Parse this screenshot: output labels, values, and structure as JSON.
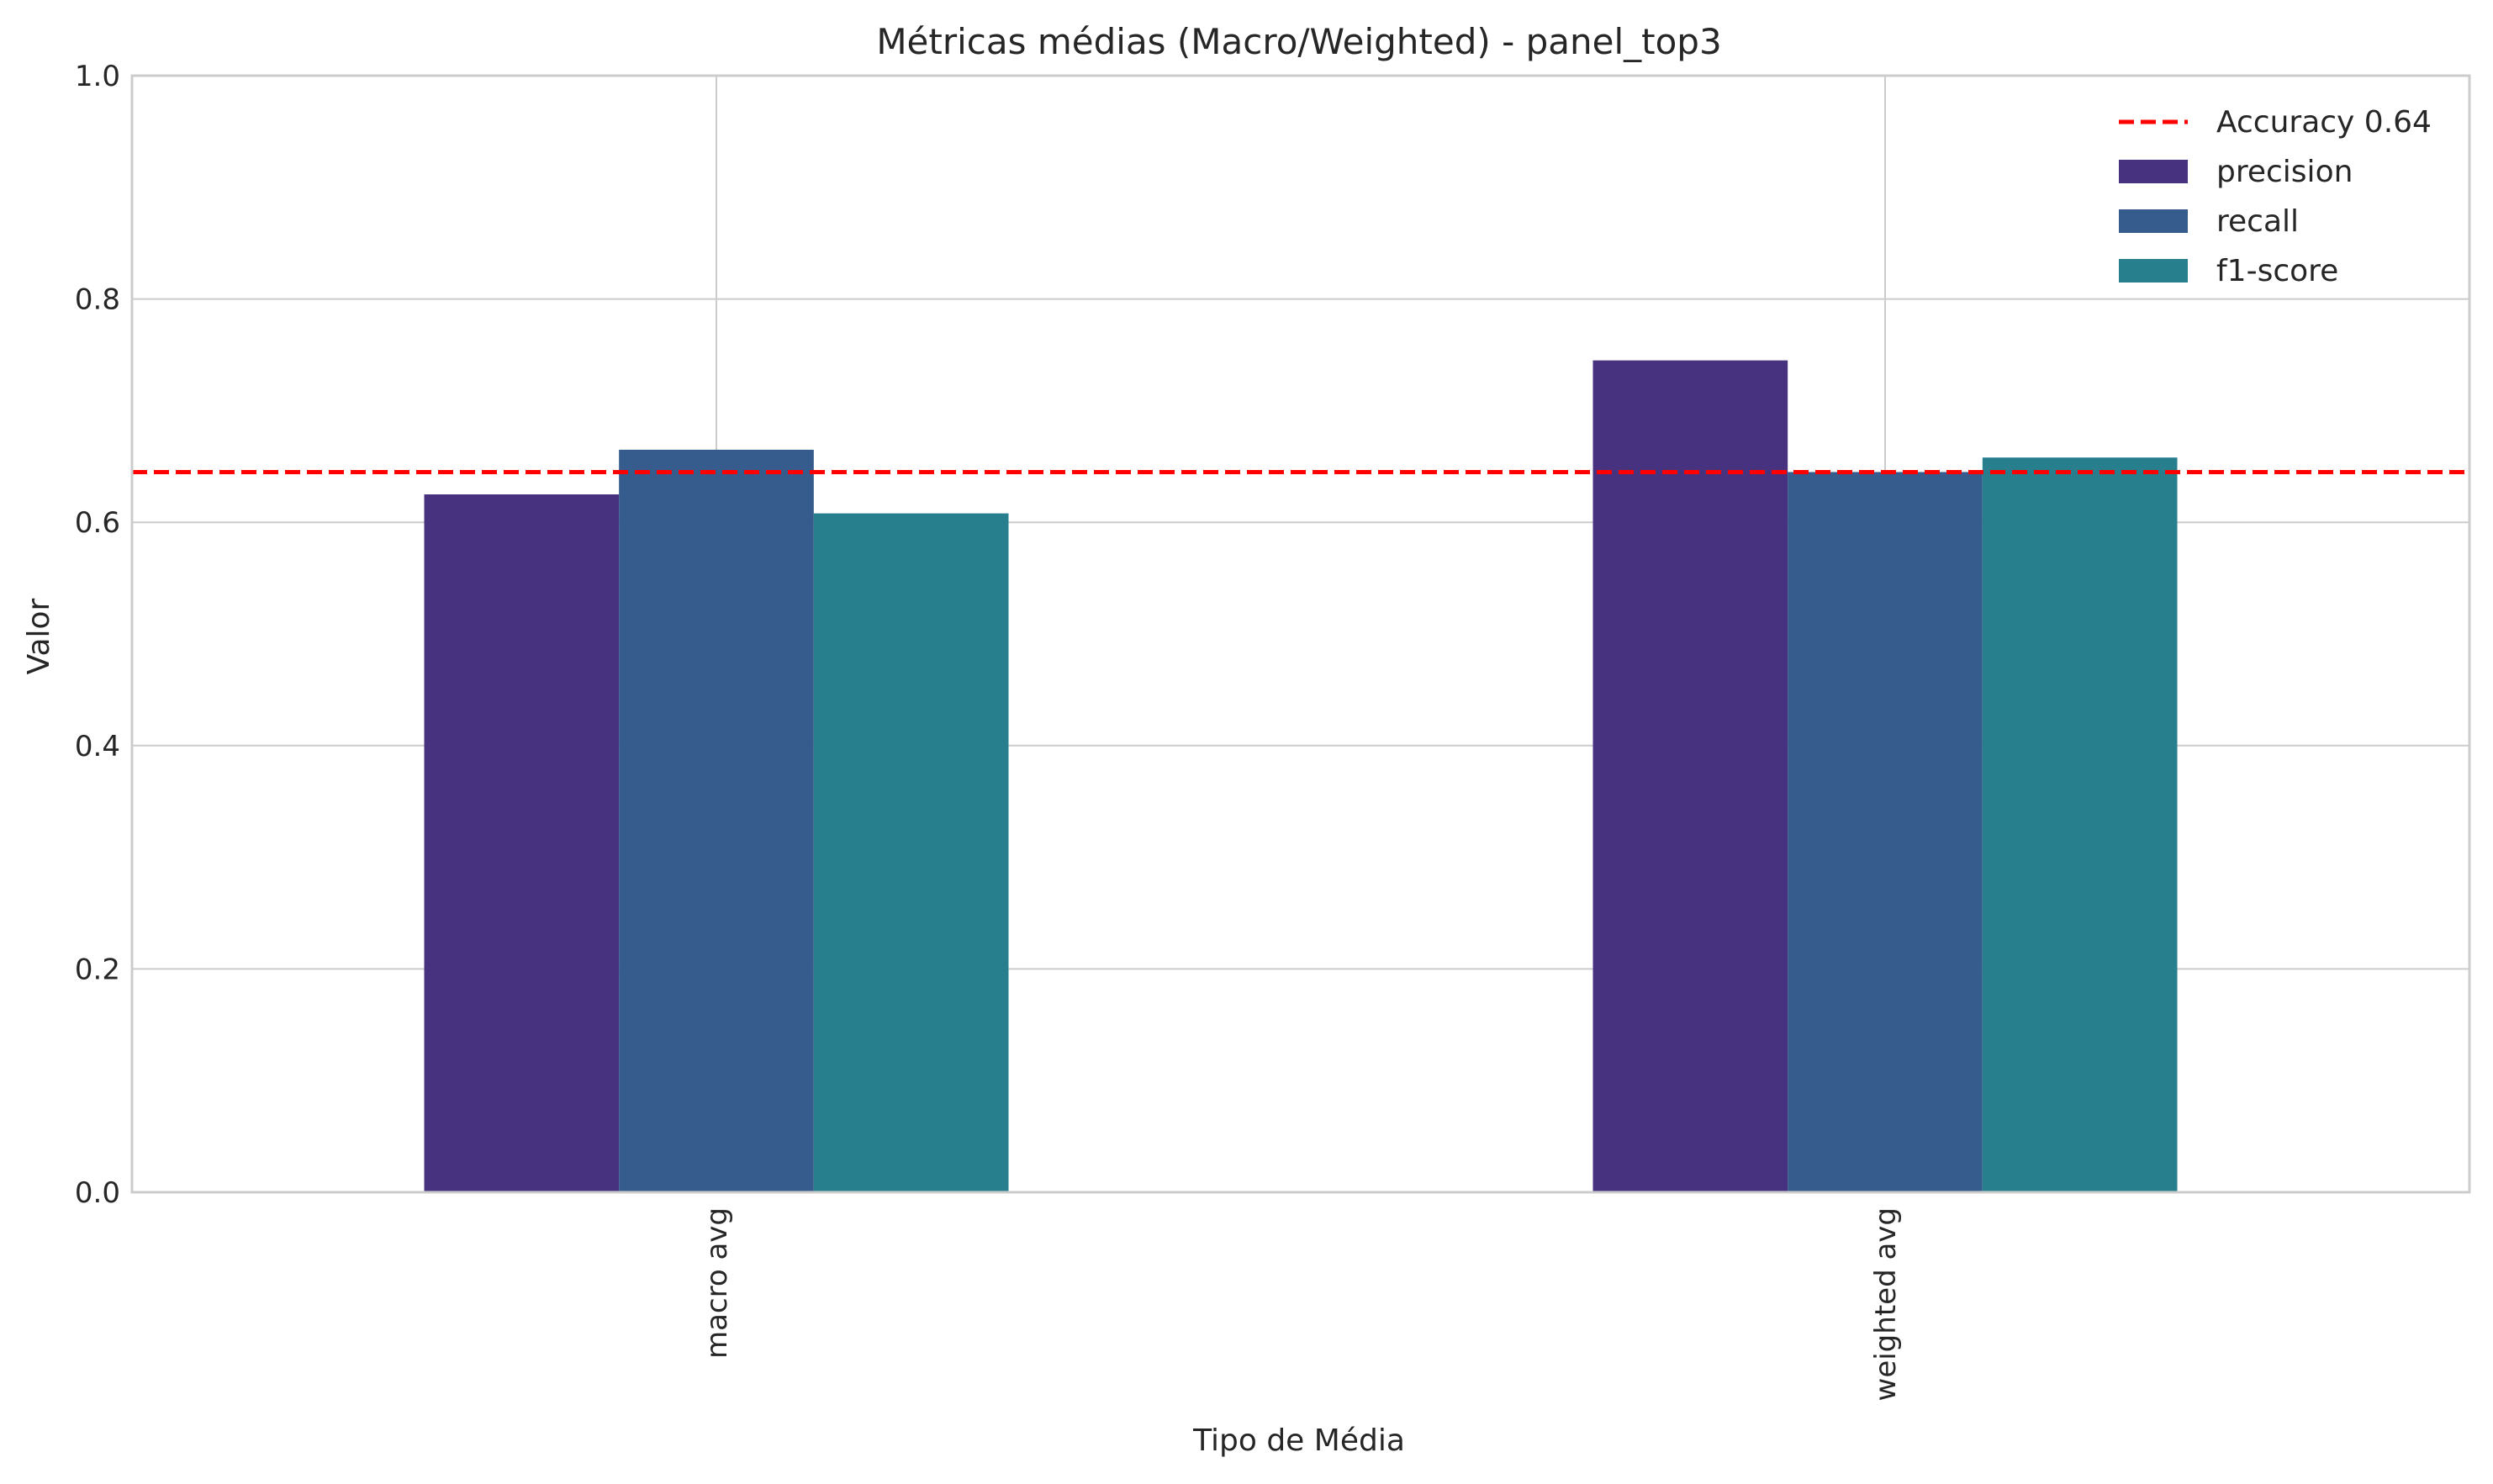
{
  "chart_data": {
    "type": "bar",
    "title": "Métricas médias (Macro/Weighted) - panel_top3",
    "xlabel": "Tipo de Média",
    "ylabel": "Valor",
    "ylim": [
      0,
      1.0
    ],
    "yticks": [
      "0.0",
      "0.2",
      "0.4",
      "0.6",
      "0.8",
      "1.0"
    ],
    "categories": [
      "macro avg",
      "weighted avg"
    ],
    "series": [
      {
        "name": "precision",
        "values": [
          0.625,
          0.745
        ],
        "color": "#46327e"
      },
      {
        "name": "recall",
        "values": [
          0.665,
          0.645
        ],
        "color": "#365c8d"
      },
      {
        "name": "f1-score",
        "values": [
          0.608,
          0.658
        ],
        "color": "#277f8e"
      }
    ],
    "reference_line": {
      "label": "Accuracy 0.64",
      "value": 0.645,
      "color": "#ff0000",
      "style": "dashed"
    },
    "grid": true,
    "legend_position": "top-right"
  }
}
